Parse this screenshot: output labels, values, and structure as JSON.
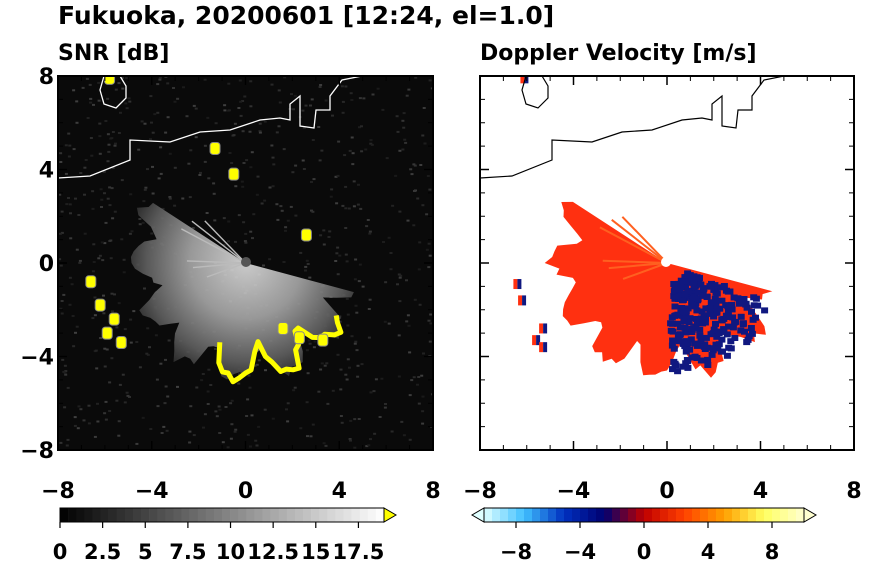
{
  "title": "Fukuoka, 20200601 [12:24, el=1.0]",
  "chart_data": [
    {
      "type": "heatmap",
      "title": "SNR [dB]",
      "xlim": [
        -8,
        8
      ],
      "ylim": [
        -8,
        8
      ],
      "x_ticks": [
        "−8",
        "−4",
        "0",
        "4",
        "8"
      ],
      "y_ticks": [
        "8",
        "4",
        "0",
        "−4",
        "−8"
      ],
      "background": "#0a0a0a",
      "colorbar": {
        "range": [
          0,
          19
        ],
        "extend": "max",
        "tick_labels": [
          "0",
          "2.5",
          "5",
          "7.5",
          "10",
          "12.5",
          "15",
          "17.5"
        ],
        "colors_low_high": [
          "#000000",
          "#ffffff"
        ],
        "extend_color": "#ffff00"
      },
      "echo_sector": {
        "center": [
          0,
          0
        ],
        "radius": 5.0,
        "from_deg": 105,
        "to_deg": 305
      },
      "echo_highlight_color": "#ffff00",
      "edge_echoes": [
        {
          "x": -6.6,
          "y": -0.8
        },
        {
          "x": -6.2,
          "y": -1.8
        },
        {
          "x": -5.6,
          "y": -2.4
        },
        {
          "x": -5.9,
          "y": -3.0
        },
        {
          "x": -5.3,
          "y": -3.4
        },
        {
          "x": 1.6,
          "y": -2.8
        },
        {
          "x": 2.3,
          "y": -3.2
        },
        {
          "x": 3.3,
          "y": -3.3
        },
        {
          "x": 2.6,
          "y": 1.2
        },
        {
          "x": -1.3,
          "y": 4.9
        },
        {
          "x": -0.5,
          "y": 3.8
        },
        {
          "x": -5.8,
          "y": 7.9
        }
      ]
    },
    {
      "type": "heatmap",
      "title": "Doppler Velocity [m/s]",
      "xlim": [
        -8,
        8
      ],
      "ylim": [
        -8,
        8
      ],
      "x_ticks": [
        "−8",
        "−4",
        "0",
        "4",
        "8"
      ],
      "y_ticks": [
        "8",
        "4",
        "0",
        "−4",
        "−8"
      ],
      "background": "#ffffff",
      "colorbar": {
        "range": [
          -10,
          10
        ],
        "extend": "both",
        "tick_labels": [
          "−8",
          "−4",
          "0",
          "4",
          "8"
        ],
        "colors_low_high": [
          "#e0ffff",
          "#40c0ff",
          "#0030c0",
          "#000070",
          "#c00000",
          "#ff4000",
          "#ffa000",
          "#ffff60",
          "#ffffd0"
        ]
      },
      "sector_colors": {
        "toward": "#ff3010",
        "away": "#101880"
      },
      "edge_echoes": [
        {
          "x": -6.4,
          "y": -0.9
        },
        {
          "x": -6.2,
          "y": -1.6
        },
        {
          "x": -5.3,
          "y": -2.8
        },
        {
          "x": -5.6,
          "y": -3.3
        },
        {
          "x": -5.3,
          "y": -3.6
        },
        {
          "x": -6.1,
          "y": 7.9
        }
      ]
    }
  ]
}
